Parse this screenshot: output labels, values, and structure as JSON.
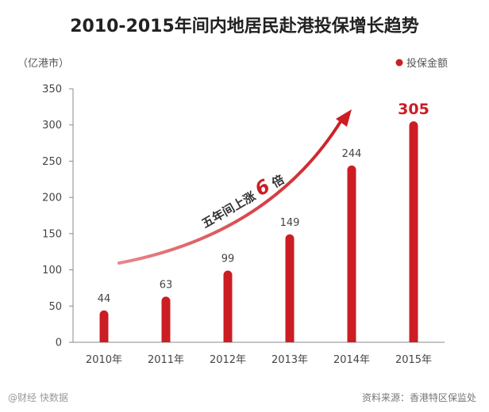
{
  "chart_data": {
    "type": "bar",
    "title": "2010-2015年间内地居民赴港投保增长趋势",
    "unit_label": "（亿港市）",
    "legend": [
      {
        "name": "投保金额",
        "color": "#cc1d24"
      }
    ],
    "categories": [
      "2010年",
      "2011年",
      "2012年",
      "2013年",
      "2014年",
      "2015年"
    ],
    "values": [
      44,
      63,
      99,
      149,
      244,
      305
    ],
    "value_labels": [
      "44",
      "63",
      "99",
      "149",
      "244",
      "305"
    ],
    "highlight_index": 5,
    "ylim": [
      0,
      350
    ],
    "yticks": [
      0,
      50,
      100,
      150,
      200,
      250,
      300,
      350
    ],
    "ytick_labels": [
      "0",
      "50",
      "100",
      "150",
      "200",
      "250",
      "300",
      "350"
    ],
    "grid": false,
    "bar_color": "#cc1d24",
    "annotation": {
      "prefix": "五年间上涨",
      "number": "6",
      "suffix": "倍"
    }
  },
  "footer": {
    "watermark": "@财经 快数据",
    "source": "资料来源：香港特区保监处"
  }
}
